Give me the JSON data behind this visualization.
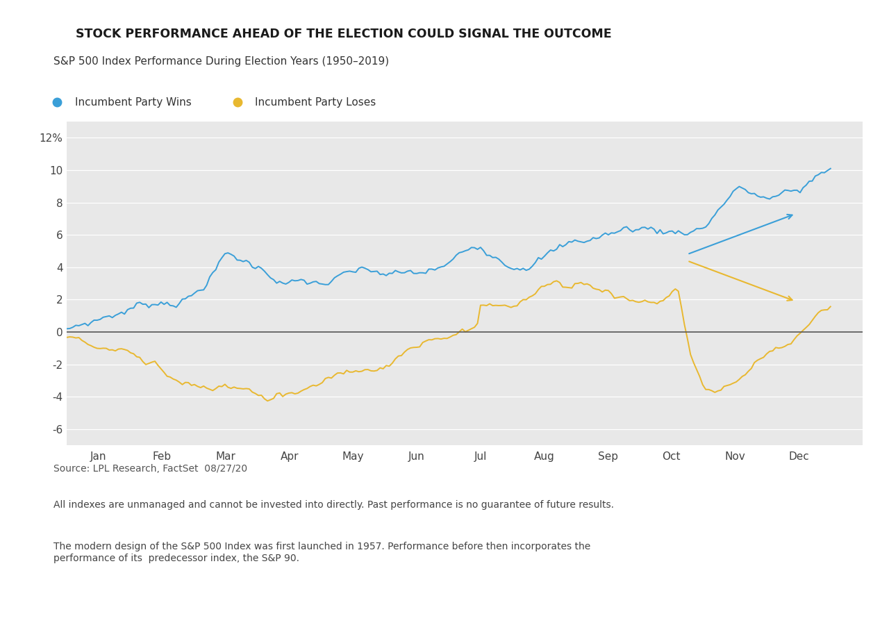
{
  "title": "STOCK PERFORMANCE AHEAD OF THE ELECTION COULD SIGNAL THE OUTCOME",
  "title_num": "1",
  "subtitle": "S&P 500 Index Performance During Election Years (1950–2019)",
  "legend_win": "Incumbent Party Wins",
  "legend_lose": "Incumbent Party Loses",
  "color_win": "#3a9fd8",
  "color_lose": "#e8b830",
  "badge_color": "#3aaed8",
  "background_color": "#e8e8e8",
  "outer_background": "#ffffff",
  "source_text": "Source: LPL Research, FactSet  08/27/20",
  "footnote1": "All indexes are unmanaged and cannot be invested into directly. Past performance is no guarantee of future results.",
  "footnote2": "The modern design of the S&P 500 Index was first launched in 1957. Performance before then incorporates the\nperformance of its  predecessor index, the S&P 90.",
  "xlabel_months": [
    "Jan",
    "Feb",
    "Mar",
    "Apr",
    "May",
    "Jun",
    "Jul",
    "Aug",
    "Sep",
    "Oct",
    "Nov",
    "Dec"
  ],
  "ylim": [
    -7,
    13
  ],
  "yticks": [
    -6,
    -4,
    -2,
    0,
    2,
    4,
    6,
    8,
    10,
    12
  ],
  "ytick_labels": [
    "-6",
    "-4",
    "-2",
    "0",
    "2",
    "4",
    "6",
    "8",
    "10",
    "12%"
  ]
}
